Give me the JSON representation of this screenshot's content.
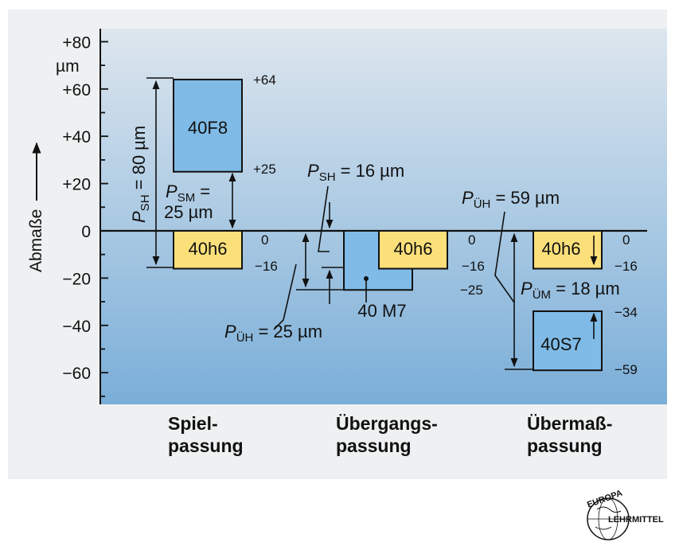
{
  "axis": {
    "ylabel": "Abmaße",
    "unit": "µm",
    "ticks": [
      {
        "value": 80,
        "label": "+80"
      },
      {
        "value": 60,
        "label": "+60"
      },
      {
        "value": 40,
        "label": "+40"
      },
      {
        "value": 20,
        "label": "+20"
      },
      {
        "value": 0,
        "label": "0"
      },
      {
        "value": -20,
        "label": "−20"
      },
      {
        "value": -40,
        "label": "−40"
      },
      {
        "value": -60,
        "label": "−60"
      }
    ]
  },
  "categories": {
    "spiel": [
      "Spiel-",
      "passung"
    ],
    "uebergang": [
      "Übergangs-",
      "passung"
    ],
    "uebermass": [
      "Übermaß-",
      "passung"
    ]
  },
  "fits": {
    "spiel": {
      "hole_label": "40F8",
      "hole_upper": 64,
      "hole_lower": 25,
      "hole_upper_label": "+64",
      "hole_lower_label": "+25",
      "shaft_label": "40h6",
      "shaft_upper": 0,
      "shaft_lower": -16,
      "shaft_upper_label": "0",
      "shaft_lower_label": "−16",
      "psh": {
        "p": "P",
        "sub": "SH",
        "rest": " = 80 µm"
      },
      "psm": {
        "p": "P",
        "sub": "SM",
        "rest": " =",
        "line2": "25 µm"
      }
    },
    "uebergang": {
      "hole_label": "40 M7",
      "hole_upper": 0,
      "hole_lower": -25,
      "hole_lower_label": "−25",
      "shaft_label": "40h6",
      "shaft_upper": 0,
      "shaft_lower": -16,
      "shaft_upper_label": "0",
      "shaft_lower_label": "−16",
      "psh": {
        "p": "P",
        "sub": "SH",
        "rest": " = 16 µm"
      },
      "puh": {
        "p": "P",
        "sub": "ÜH",
        "rest": " = 25 µm"
      }
    },
    "uebermass": {
      "hole_label": "40S7",
      "hole_upper": -34,
      "hole_lower": -59,
      "hole_upper_label": "−34",
      "hole_lower_label": "−59",
      "shaft_label": "40h6",
      "shaft_upper": 0,
      "shaft_lower": -16,
      "shaft_upper_label": "0",
      "shaft_lower_label": "−16",
      "puh": {
        "p": "P",
        "sub": "ÜH",
        "rest": " = 59 µm"
      },
      "pum": {
        "p": "P",
        "sub": "ÜM",
        "rest": " = 18 µm"
      }
    }
  },
  "logo": {
    "top": "EUROPA",
    "right": "LEHRMITTEL"
  },
  "colors": {
    "hole": "#7fbbe6",
    "shaft": "#fbe07a",
    "bg_top": "#dde6ee",
    "bg_bottom": "#7aaed8"
  }
}
